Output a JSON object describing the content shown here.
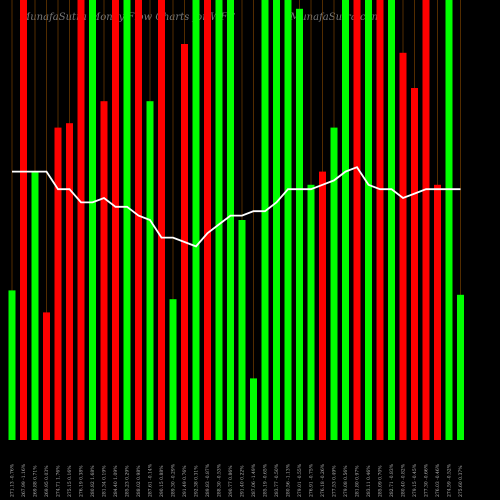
{
  "chart_data": {
    "type": "bar",
    "title": "MunafaSutra Money Flow Charts for WFC",
    "subtitle": "MunafaSutra.com",
    "categories": [
      "271.13 -0.76%",
      "267.99 -1.16%",
      "269.88 0.71%",
      "269.95 0.03%",
      "274.71 1.76%",
      "275.15 0.16%",
      "276.19 0.38%",
      "280.82 1.68%",
      "281.34 0.19%",
      "284.40 1.09%",
      "285.23 0.29%",
      "288.02 0.98%",
      "287.61 -0.14%",
      "290.15 0.88%",
      "289.30 -0.29%",
      "291.49 0.76%",
      "292.38 0.31%",
      "289.83 -0.87%",
      "288.30 -0.53%",
      "290.77 0.86%",
      "291.40 0.22%",
      "287.06 -1.49%",
      "285.19 -0.65%",
      "283.77 -0.50%",
      "280.56 -1.13%",
      "279.01 -0.55%",
      "276.91 -0.75%",
      "276.18 -0.26%",
      "277.53 0.49%",
      "279.08 0.56%",
      "281.80 0.97%",
      "283.11 0.46%",
      "285.09 0.70%",
      "282.71 -0.83%",
      "280.40 -0.82%",
      "279.15 -0.45%",
      "277.30 -0.66%",
      "276.03 -0.46%",
      "274.59 -0.52%",
      "275.60 0.37%"
    ],
    "values": [
      34,
      100,
      61,
      29,
      71,
      72,
      100,
      100,
      77,
      100,
      100,
      100,
      77,
      100,
      32,
      90,
      100,
      100,
      100,
      100,
      50,
      14,
      100,
      100,
      100,
      98,
      58,
      61,
      71,
      100,
      100,
      100,
      100,
      100,
      88,
      80,
      100,
      58,
      100,
      33
    ],
    "bar_colors": [
      "#00ff00",
      "#ff0000",
      "#00ff00",
      "#ff0000",
      "#ff0000",
      "#ff0000",
      "#ff0000",
      "#00ff00",
      "#ff0000",
      "#ff0000",
      "#00ff00",
      "#ff0000",
      "#00ff00",
      "#ff0000",
      "#00ff00",
      "#ff0000",
      "#00ff00",
      "#ff0000",
      "#00ff00",
      "#00ff00",
      "#00ff00",
      "#00ff00",
      "#00ff00",
      "#00ff00",
      "#00ff00",
      "#00ff00",
      "#00ff00",
      "#ff0000",
      "#00ff00",
      "#00ff00",
      "#ff0000",
      "#00ff00",
      "#ff0000",
      "#00ff00",
      "#ff0000",
      "#ff0000",
      "#ff0000",
      "#ff0000",
      "#00ff00",
      "#00ff00"
    ],
    "line": {
      "color": "#ffffff",
      "values": [
        61,
        61,
        61,
        61,
        57,
        57,
        54,
        54,
        55,
        53,
        53,
        51,
        50,
        46,
        46,
        45,
        44,
        47,
        49,
        51,
        51,
        52,
        52,
        54,
        57,
        57,
        57,
        58,
        59,
        61,
        62,
        58,
        57,
        57,
        55,
        56,
        57,
        57,
        57,
        57
      ]
    },
    "ylim": [
      0,
      100
    ]
  }
}
